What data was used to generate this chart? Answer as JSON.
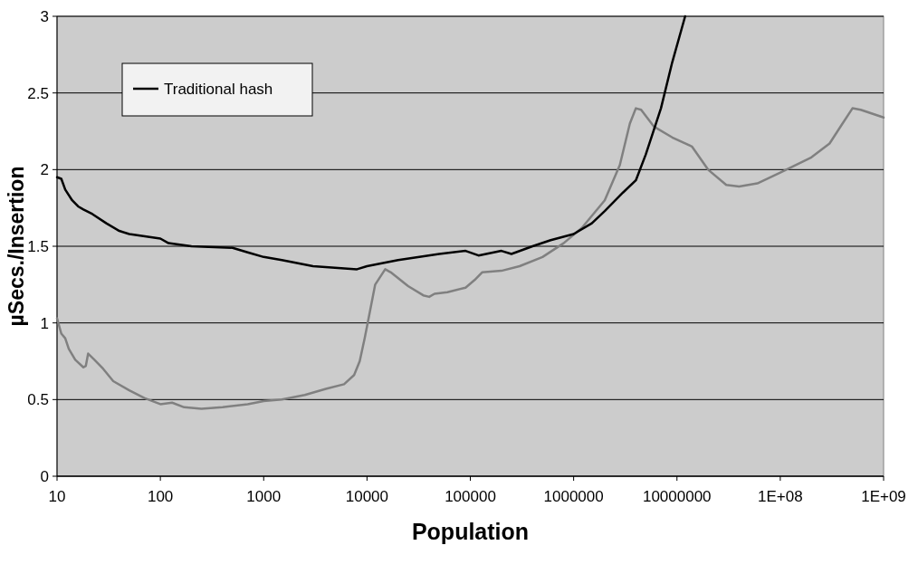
{
  "chart_data": {
    "type": "line",
    "xlabel": "Population",
    "ylabel": "µSecs./Insertion",
    "log": "x",
    "grid": "y",
    "legend": "top left",
    "line_style": "solid",
    "marker": "none",
    "xlim": [
      10,
      1000000000
    ],
    "xticks": [
      10,
      100,
      1000,
      10000,
      100000,
      1000000,
      10000000,
      {
        "value": 100000000,
        "label": "1E+08"
      },
      {
        "value": 1000000000,
        "label": "1E+09"
      }
    ],
    "ylim": [
      0,
      3
    ],
    "yticks": [
      0,
      0.5,
      1,
      1.5,
      2,
      2.5,
      3
    ],
    "series": [
      {
        "color": "#808080",
        "x": [
          10,
          11,
          12,
          13,
          15,
          18,
          19,
          20,
          23,
          28,
          35,
          50,
          70,
          100,
          130,
          170,
          250,
          400,
          700,
          1000,
          1500,
          2500,
          4000,
          6000,
          7500,
          8500,
          9500,
          10500,
          12000,
          15000,
          17000,
          25000,
          35000,
          40000,
          45000,
          60000,
          90000,
          110000,
          130000,
          200000,
          300000,
          500000,
          800000,
          1200000,
          2000000,
          2800000,
          3500000,
          4000000,
          4500000,
          6000000,
          9000000,
          14000000,
          20000000,
          30000000,
          40000000,
          60000000,
          100000000,
          200000000,
          300000000,
          400000000,
          500000000,
          600000000,
          1000000000
        ],
        "values": [
          1.03,
          0.93,
          0.9,
          0.83,
          0.76,
          0.71,
          0.72,
          0.8,
          0.76,
          0.7,
          0.62,
          0.56,
          0.51,
          0.47,
          0.48,
          0.45,
          0.44,
          0.45,
          0.47,
          0.49,
          0.5,
          0.53,
          0.57,
          0.6,
          0.66,
          0.75,
          0.9,
          1.05,
          1.25,
          1.35,
          1.33,
          1.24,
          1.18,
          1.17,
          1.19,
          1.2,
          1.23,
          1.28,
          1.33,
          1.34,
          1.37,
          1.43,
          1.52,
          1.62,
          1.8,
          2.03,
          2.3,
          2.4,
          2.39,
          2.28,
          2.21,
          2.15,
          2,
          1.9,
          1.89,
          1.91,
          1.98,
          2.08,
          2.17,
          2.3,
          2.4,
          2.39,
          2.34
        ]
      },
      {
        "name": "Traditional hash",
        "color": "#000000",
        "x": [
          10,
          11,
          12,
          14,
          16,
          18,
          22,
          30,
          40,
          50,
          100,
          120,
          200,
          500,
          700,
          1000,
          1500,
          3000,
          8000,
          10000,
          20000,
          50000,
          90000,
          120000,
          200000,
          250000,
          400000,
          600000,
          1000000,
          1500000,
          2000000,
          3000000,
          4000000,
          5000000,
          7000000,
          9000000,
          12000000
        ],
        "values": [
          1.95,
          1.94,
          1.87,
          1.8,
          1.76,
          1.74,
          1.71,
          1.65,
          1.6,
          1.58,
          1.55,
          1.52,
          1.5,
          1.49,
          1.46,
          1.43,
          1.41,
          1.37,
          1.35,
          1.37,
          1.41,
          1.45,
          1.47,
          1.44,
          1.47,
          1.45,
          1.5,
          1.54,
          1.58,
          1.65,
          1.73,
          1.85,
          1.93,
          2.1,
          2.4,
          2.7,
          3.0
        ]
      }
    ]
  }
}
